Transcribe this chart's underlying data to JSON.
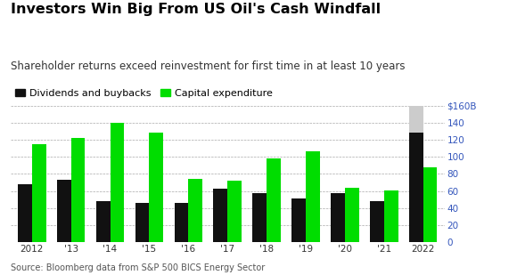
{
  "title": "Investors Win Big From US Oil's Cash Windfall",
  "subtitle": "Shareholder returns exceed reinvestment for first time in at least 10 years",
  "legend": [
    "Dividends and buybacks",
    "Capital expenditure"
  ],
  "source": "Source: Bloomberg data from S&P 500 BICS Energy Sector",
  "years": [
    "2012",
    "'13",
    "'14",
    "'15",
    "'16",
    "'17",
    "'18",
    "'19",
    "'20",
    "'21",
    "2022"
  ],
  "dividends_buybacks": [
    68,
    73,
    48,
    46,
    46,
    63,
    57,
    51,
    57,
    48,
    128
  ],
  "capex": [
    115,
    122,
    140,
    128,
    74,
    72,
    98,
    107,
    64,
    61,
    88
  ],
  "gray_bar_height": 160,
  "ylim": [
    0,
    168
  ],
  "yticks": [
    0,
    20,
    40,
    60,
    80,
    100,
    120,
    140,
    160
  ],
  "ytick_labels": [
    "0",
    "20",
    "40",
    "60",
    "80",
    "100",
    "120",
    "140",
    "$160B"
  ],
  "bar_color_black": "#111111",
  "bar_color_green": "#00dd00",
  "bar_color_gray": "#cccccc",
  "yaxis_label_color": "#3355bb",
  "background_color": "#ffffff",
  "title_color": "#000000",
  "subtitle_color": "#333333",
  "source_color": "#555555",
  "title_fontsize": 11.5,
  "subtitle_fontsize": 8.5,
  "legend_fontsize": 8,
  "axis_fontsize": 7.5,
  "source_fontsize": 7
}
